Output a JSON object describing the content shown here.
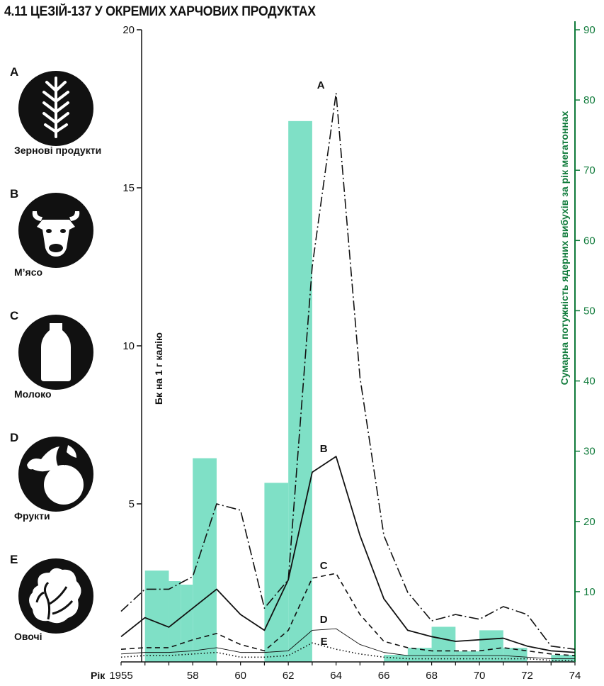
{
  "title": "4.11 ЦЕЗІЙ-137 У ОКРЕМИХ ХАРЧОВИХ ПРОДУКТАХ",
  "colors": {
    "bars": "#7fe0c6",
    "right_axis": "#0f7a3a",
    "ink": "#111111"
  },
  "legend": [
    {
      "letter": "A",
      "label": "Зернові продукти",
      "icon": "wheat-icon"
    },
    {
      "letter": "B",
      "label": "М’ясо",
      "icon": "cow-head-icon"
    },
    {
      "letter": "C",
      "label": "Молоко",
      "icon": "milk-bottle-icon"
    },
    {
      "letter": "D",
      "label": "Фрукти",
      "icon": "fruit-icon"
    },
    {
      "letter": "E",
      "label": "Овочі",
      "icon": "vegetable-icon"
    }
  ],
  "chart_data": {
    "type": "line",
    "title": "4.11 ЦЕЗІЙ-137 У ОКРЕМИХ ХАРЧОВИХ ПРОДУКТАХ",
    "xlabel": "Рік",
    "ylabel": "Бк на 1 г калію",
    "y2label": "Сумарна потужність ядерних вибухів за рік мегатоннах",
    "xlim": [
      1955,
      1974
    ],
    "ylim": [
      0,
      20
    ],
    "y2lim": [
      0,
      90
    ],
    "x_ticks": [
      1955,
      1958,
      1960,
      1962,
      1964,
      1966,
      1968,
      1970,
      1972,
      1974
    ],
    "x_tick_labels": [
      "1955",
      "58",
      "60",
      "62",
      "64",
      "66",
      "68",
      "70",
      "72",
      "74"
    ],
    "y_ticks": [
      5,
      10,
      15,
      20
    ],
    "y2_ticks": [
      10,
      20,
      30,
      40,
      50,
      60,
      70,
      80,
      90
    ],
    "grid": false,
    "series": [
      {
        "name": "A",
        "style": "dashdot",
        "x": [
          1955,
          1956,
          1957,
          1958,
          1959,
          1960,
          1961,
          1962,
          1963,
          1964,
          1965,
          1966,
          1967,
          1968,
          1969,
          1970,
          1971,
          1972,
          1973,
          1974
        ],
        "y": [
          1.6,
          2.3,
          2.3,
          2.7,
          5.0,
          4.8,
          1.7,
          2.6,
          12.5,
          18.0,
          9.0,
          4.0,
          2.2,
          1.3,
          1.5,
          1.35,
          1.75,
          1.5,
          0.5,
          0.4
        ]
      },
      {
        "name": "B",
        "style": "solid",
        "x": [
          1955,
          1956,
          1957,
          1958,
          1959,
          1960,
          1961,
          1962,
          1963,
          1964,
          1965,
          1966,
          1967,
          1968,
          1969,
          1970,
          1971,
          1972,
          1973,
          1974
        ],
        "y": [
          0.8,
          1.4,
          1.1,
          1.7,
          2.3,
          1.5,
          1.0,
          2.6,
          6.0,
          6.5,
          4.0,
          2.0,
          1.0,
          0.8,
          0.65,
          0.7,
          0.75,
          0.5,
          0.35,
          0.3
        ]
      },
      {
        "name": "C",
        "style": "dashed",
        "x": [
          1955,
          1956,
          1957,
          1958,
          1959,
          1960,
          1961,
          1962,
          1963,
          1964,
          1965,
          1966,
          1967,
          1968,
          1969,
          1970,
          1971,
          1972,
          1973,
          1974
        ],
        "y": [
          0.4,
          0.45,
          0.45,
          0.7,
          0.9,
          0.55,
          0.35,
          1.0,
          2.65,
          2.8,
          1.5,
          0.65,
          0.45,
          0.35,
          0.35,
          0.35,
          0.45,
          0.35,
          0.25,
          0.2
        ]
      },
      {
        "name": "D",
        "style": "thin",
        "x": [
          1955,
          1956,
          1957,
          1958,
          1959,
          1960,
          1961,
          1962,
          1963,
          1964,
          1965,
          1966,
          1967,
          1968,
          1969,
          1970,
          1971,
          1972,
          1973,
          1974
        ],
        "y": [
          0.25,
          0.3,
          0.3,
          0.35,
          0.45,
          0.3,
          0.3,
          0.35,
          1.0,
          1.05,
          0.55,
          0.3,
          0.2,
          0.2,
          0.2,
          0.2,
          0.2,
          0.15,
          0.1,
          0.1
        ]
      },
      {
        "name": "E",
        "style": "dotted",
        "x": [
          1955,
          1956,
          1957,
          1958,
          1959,
          1960,
          1961,
          1962,
          1963,
          1964,
          1965,
          1966,
          1967,
          1968,
          1969,
          1970,
          1971,
          1972,
          1973,
          1974
        ],
        "y": [
          0.15,
          0.2,
          0.2,
          0.25,
          0.3,
          0.15,
          0.15,
          0.2,
          0.6,
          0.4,
          0.25,
          0.15,
          0.1,
          0.1,
          0.1,
          0.1,
          0.1,
          0.1,
          0.05,
          0.05
        ]
      }
    ],
    "bars": {
      "axis": "right",
      "start": [
        1956,
        1957,
        1957.5,
        1958,
        1961,
        1962,
        1966,
        1967,
        1968,
        1969,
        1970,
        1971,
        1973
      ],
      "end": [
        1957,
        1957.5,
        1958,
        1959,
        1962,
        1963,
        1967,
        1968,
        1969,
        1970,
        1971,
        1972,
        1974
      ],
      "values": [
        13,
        11.5,
        11,
        29,
        25.5,
        77,
        1,
        2,
        5,
        1.5,
        4.5,
        2,
        1
      ]
    }
  }
}
